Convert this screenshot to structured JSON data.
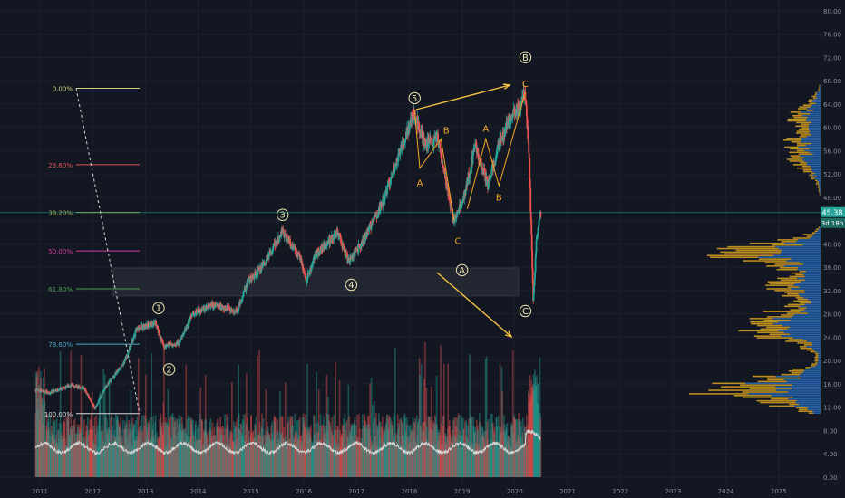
{
  "chart_data": {
    "type": "candlestick",
    "title": "",
    "xlabel": "",
    "ylabel": "",
    "ylim": [
      0,
      82
    ],
    "y_ticks": [
      "0.00",
      "4.00",
      "8.00",
      "12.00",
      "16.00",
      "20.00",
      "24.00",
      "28.00",
      "32.00",
      "36.00",
      "40.00",
      "44.00",
      "48.00",
      "52.00",
      "56.00",
      "60.00",
      "64.00",
      "68.00",
      "72.00",
      "76.00",
      "80.00"
    ],
    "x_ticks": [
      "2011",
      "2012",
      "2013",
      "2014",
      "2015",
      "2016",
      "2017",
      "2018",
      "2019",
      "2020",
      "2021",
      "2022",
      "2023",
      "2024",
      "2025"
    ],
    "price_path": [
      [
        2010.92,
        15
      ],
      [
        2011.2,
        14.5
      ],
      [
        2011.6,
        15.8
      ],
      [
        2011.85,
        15.2
      ],
      [
        2012.05,
        11.8
      ],
      [
        2012.25,
        15.5
      ],
      [
        2012.6,
        19.5
      ],
      [
        2012.85,
        25.5
      ],
      [
        2013.2,
        26.5
      ],
      [
        2013.35,
        22.5
      ],
      [
        2013.65,
        23
      ],
      [
        2013.9,
        28
      ],
      [
        2014.3,
        29.5
      ],
      [
        2014.75,
        28.5
      ],
      [
        2014.95,
        33.5
      ],
      [
        2015.25,
        36.5
      ],
      [
        2015.6,
        42
      ],
      [
        2015.95,
        37.5
      ],
      [
        2016.05,
        33.5
      ],
      [
        2016.25,
        38.5
      ],
      [
        2016.65,
        42
      ],
      [
        2016.85,
        37
      ],
      [
        2017.1,
        40
      ],
      [
        2017.45,
        46
      ],
      [
        2017.8,
        55
      ],
      [
        2018.1,
        62.5
      ],
      [
        2018.3,
        57
      ],
      [
        2018.55,
        58
      ],
      [
        2018.85,
        44
      ],
      [
        2019.0,
        47
      ],
      [
        2019.15,
        52
      ],
      [
        2019.25,
        57
      ],
      [
        2019.4,
        53
      ],
      [
        2019.5,
        50
      ],
      [
        2019.7,
        57
      ],
      [
        2019.95,
        62
      ],
      [
        2020.1,
        63.5
      ],
      [
        2020.2,
        66
      ],
      [
        2020.28,
        55
      ],
      [
        2020.36,
        30
      ],
      [
        2020.42,
        41
      ],
      [
        2020.5,
        45.4
      ]
    ],
    "volume_ylim": [
      0,
      82
    ],
    "fibonacci": [
      {
        "label": "0.00%",
        "value": 66.7,
        "color": "#d4d488"
      },
      {
        "label": "23.60%",
        "value": 53.6,
        "color": "#e05555"
      },
      {
        "label": "38.20%",
        "value": 45.4,
        "color": "#b8b04a"
      },
      {
        "label": "50.00%",
        "value": 38.8,
        "color": "#d03aa0"
      },
      {
        "label": "61.80%",
        "value": 32.3,
        "color": "#4a9a4a"
      },
      {
        "label": "78.60%",
        "value": 22.8,
        "color": "#4aa8c8"
      },
      {
        "label": "100.00%",
        "value": 10.9,
        "color": "#d8d8d8"
      }
    ],
    "wave_labels": [
      {
        "text": "1",
        "x": 2013.25,
        "y": 29.0,
        "circled": true,
        "color": "#f0e6b0"
      },
      {
        "text": "2",
        "x": 2013.45,
        "y": 18.5,
        "circled": true,
        "color": "#f0e6b0"
      },
      {
        "text": "3",
        "x": 2015.6,
        "y": 45.0,
        "circled": true,
        "color": "#f0e6b0"
      },
      {
        "text": "4",
        "x": 2016.9,
        "y": 33.0,
        "circled": true,
        "color": "#f0e6b0"
      },
      {
        "text": "5",
        "x": 2018.1,
        "y": 65.0,
        "circled": true,
        "color": "#f0e6b0"
      },
      {
        "text": "A",
        "x": 2019.0,
        "y": 35.5,
        "circled": true,
        "color": "#f0e6b0"
      },
      {
        "text": "B",
        "x": 2020.2,
        "y": 72.0,
        "circled": true,
        "color": "#f0e6b0"
      },
      {
        "text": "C",
        "x": 2020.2,
        "y": 28.5,
        "circled": true,
        "color": "#f0e6b0"
      },
      {
        "text": "A",
        "x": 2018.2,
        "y": 50.5,
        "circled": false,
        "color": "#f5a623"
      },
      {
        "text": "B",
        "x": 2018.7,
        "y": 59.5,
        "circled": false,
        "color": "#f5a623"
      },
      {
        "text": "C",
        "x": 2018.92,
        "y": 40.5,
        "circled": false,
        "color": "#f5a623"
      },
      {
        "text": "A",
        "x": 2019.45,
        "y": 59.8,
        "circled": false,
        "color": "#f5a623"
      },
      {
        "text": "B",
        "x": 2019.7,
        "y": 48.0,
        "circled": false,
        "color": "#f5a623"
      },
      {
        "text": "C",
        "x": 2020.2,
        "y": 67.5,
        "circled": false,
        "color": "#f5a623"
      }
    ],
    "current_price": "45.38",
    "countdown": "3d 18h",
    "accent_colors": {
      "up": "#26a69a",
      "down": "#ef5350",
      "wave_arrow": "#f5c242",
      "price_line": "#26a69a",
      "volume_profile_up": "#2e7bd6",
      "volume_profile_down": "#d9a221"
    }
  }
}
